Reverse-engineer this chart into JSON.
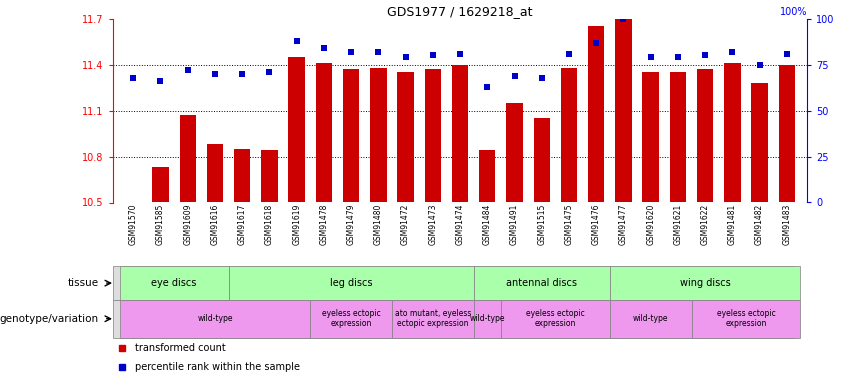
{
  "title": "GDS1977 / 1629218_at",
  "samples": [
    "GSM91570",
    "GSM91585",
    "GSM91609",
    "GSM91616",
    "GSM91617",
    "GSM91618",
    "GSM91619",
    "GSM91478",
    "GSM91479",
    "GSM91480",
    "GSM91472",
    "GSM91473",
    "GSM91474",
    "GSM91484",
    "GSM91491",
    "GSM91515",
    "GSM91475",
    "GSM91476",
    "GSM91477",
    "GSM91620",
    "GSM91621",
    "GSM91622",
    "GSM91481",
    "GSM91482",
    "GSM91483"
  ],
  "bar_values": [
    10.5,
    10.73,
    11.07,
    10.88,
    10.85,
    10.84,
    11.45,
    11.41,
    11.37,
    11.38,
    11.35,
    11.37,
    11.4,
    10.84,
    11.15,
    11.05,
    11.38,
    11.65,
    11.7,
    11.35,
    11.35,
    11.37,
    11.41,
    11.28,
    11.4
  ],
  "percentile_values": [
    68,
    66,
    72,
    70,
    70,
    71,
    88,
    84,
    82,
    82,
    79,
    80,
    81,
    63,
    69,
    68,
    81,
    87,
    100,
    79,
    79,
    80,
    82,
    75,
    81
  ],
  "ylim_left": [
    10.5,
    11.7
  ],
  "ylim_right": [
    0,
    100
  ],
  "yticks_left": [
    10.5,
    10.8,
    11.1,
    11.4,
    11.7
  ],
  "yticks_right": [
    0,
    25,
    50,
    75,
    100
  ],
  "bar_color": "#cc0000",
  "percentile_color": "#0000cc",
  "bar_width": 0.6,
  "tissue_regions": [
    {
      "label": "eye discs",
      "start": 0,
      "end": 3,
      "color": "#aaffaa"
    },
    {
      "label": "leg discs",
      "start": 4,
      "end": 12,
      "color": "#aaffaa"
    },
    {
      "label": "antennal discs",
      "start": 13,
      "end": 17,
      "color": "#aaffaa"
    },
    {
      "label": "wing discs",
      "start": 18,
      "end": 24,
      "color": "#aaffaa"
    }
  ],
  "genotype_regions": [
    {
      "label": "wild-type",
      "start": 0,
      "end": 6,
      "color": "#ee99ee"
    },
    {
      "label": "eyeless ectopic\nexpression",
      "start": 7,
      "end": 9,
      "color": "#ee99ee"
    },
    {
      "label": "ato mutant, eyeless\nectopic expression",
      "start": 10,
      "end": 12,
      "color": "#ee99ee"
    },
    {
      "label": "wild-type",
      "start": 13,
      "end": 13,
      "color": "#ee99ee"
    },
    {
      "label": "eyeless ectopic\nexpression",
      "start": 14,
      "end": 17,
      "color": "#ee99ee"
    },
    {
      "label": "wild-type",
      "start": 18,
      "end": 20,
      "color": "#ee99ee"
    },
    {
      "label": "eyeless ectopic\nexpression",
      "start": 21,
      "end": 24,
      "color": "#ee99ee"
    }
  ],
  "tissue_label": "tissue",
  "genotype_label": "genotype/variation",
  "legend_bar_label": "transformed count",
  "legend_pct_label": "percentile rank within the sample",
  "fig_width": 8.68,
  "fig_height": 3.75,
  "dpi": 100
}
